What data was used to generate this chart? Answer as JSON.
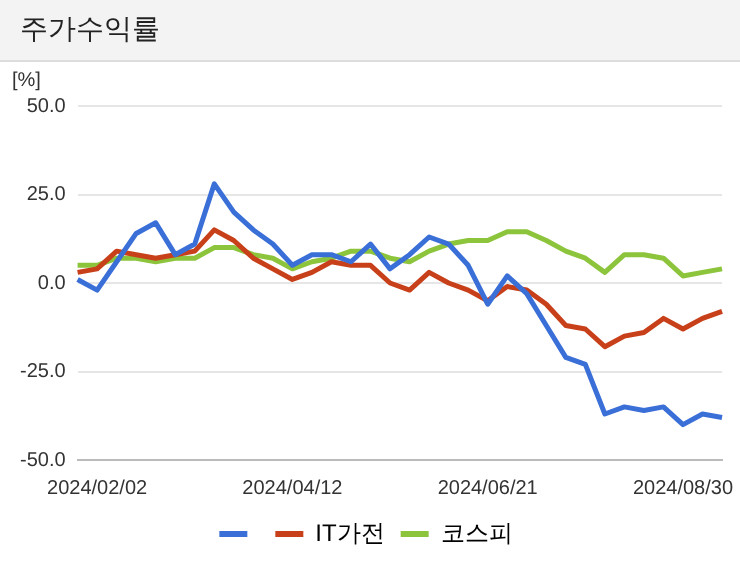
{
  "chart_data": {
    "type": "line",
    "title": "주가수익률",
    "ylabel": "[%]",
    "categories": [
      null,
      "2024/02/02",
      null,
      null,
      null,
      null,
      null,
      null,
      null,
      null,
      null,
      "2024/04/12",
      null,
      null,
      null,
      null,
      null,
      null,
      null,
      null,
      null,
      "2024/06/21",
      null,
      null,
      null,
      null,
      null,
      null,
      null,
      null,
      null,
      "2024/08/30",
      null,
      null
    ],
    "series": [
      {
        "color": "#3a6fd8",
        "values": [
          1,
          -2,
          6,
          14,
          17,
          8,
          11,
          28,
          20,
          15,
          11,
          5,
          8,
          8,
          6,
          11,
          4,
          8,
          13,
          11,
          5,
          -6,
          2,
          -3,
          -12,
          -21,
          -23,
          -37,
          -35,
          -36,
          -35,
          -40,
          -37,
          -38
        ]
      },
      {
        "name": "IT가전",
        "color": "#c8401a",
        "values": [
          3,
          4,
          9,
          8,
          7,
          8,
          9,
          15,
          12,
          7,
          4,
          1,
          3,
          6,
          5,
          5,
          0,
          -2,
          3,
          0,
          -2,
          -5,
          -1,
          -2,
          -6,
          -12,
          -13,
          -18,
          -15,
          -14,
          -10,
          -13,
          -10,
          -8
        ]
      },
      {
        "name": "코스피",
        "color": "#8cc43c",
        "values": [
          5,
          5,
          7,
          7,
          6,
          7,
          7,
          10,
          10,
          8,
          7,
          4,
          6,
          7,
          9,
          9,
          7,
          6,
          9,
          11,
          12,
          12,
          14.5,
          14.5,
          12,
          9,
          7,
          3,
          8,
          8,
          7,
          2,
          3,
          4
        ]
      }
    ],
    "ylim": [
      -50,
      50
    ],
    "yticks": [
      {
        "value": -50,
        "label": "-50.0"
      },
      {
        "value": -25,
        "label": "-25.0"
      },
      {
        "value": 0,
        "label": "0.0"
      },
      {
        "value": 25,
        "label": "25.0"
      },
      {
        "value": 50,
        "label": "50.0"
      }
    ],
    "grid": "y",
    "legend": "bottom",
    "marker": "none",
    "line_style": "solid"
  }
}
